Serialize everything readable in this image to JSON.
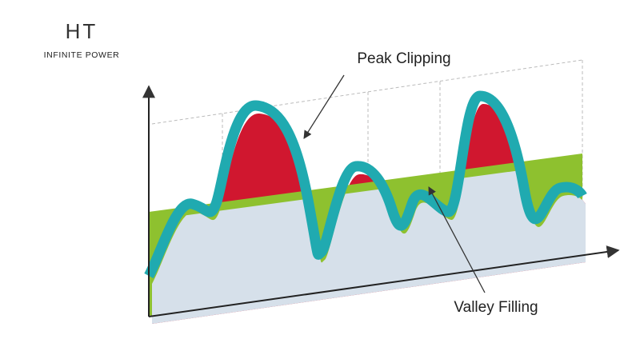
{
  "logo": {
    "mark": "HT",
    "tagline": "INFINITE POWER"
  },
  "labels": {
    "peak": "Peak Clipping",
    "valley": "Valley Filling"
  }
}
